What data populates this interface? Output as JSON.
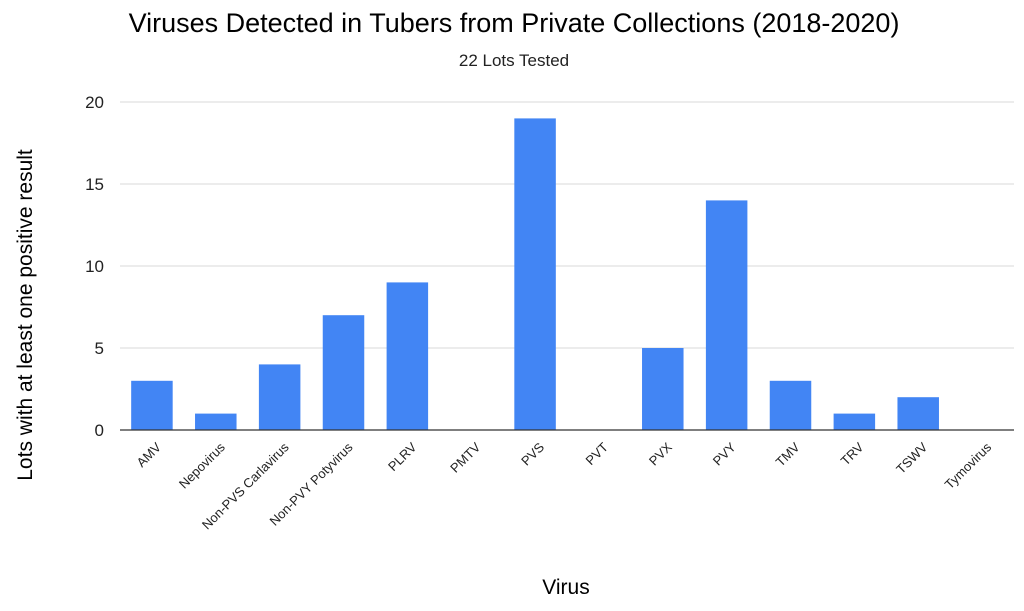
{
  "chart_data": {
    "type": "bar",
    "title": "Viruses Detected in Tubers from Private Collections (2018-2020)",
    "subtitle": "22 Lots Tested",
    "xlabel": "Virus",
    "ylabel": "Lots with at least one positive result",
    "categories": [
      "AMV",
      "Nepovirus",
      "Non-PVS Carlavirus",
      "Non-PVY Potyvirus",
      "PLRV",
      "PMTV",
      "PVS",
      "PVT",
      "PVX",
      "PVY",
      "TMV",
      "TRV",
      "TSWV",
      "Tymovirus"
    ],
    "values": [
      3,
      1,
      4,
      7,
      9,
      0,
      19,
      0,
      5,
      14,
      3,
      1,
      2,
      0
    ],
    "ylim": [
      0,
      20
    ],
    "yticks": [
      0,
      5,
      10,
      15,
      20
    ],
    "grid": true,
    "legend": "none",
    "colors": {
      "bar": "#4285f4",
      "grid": "#d9d9d9",
      "axis": "#333333",
      "text": "#000000",
      "tick_text": "#222222"
    }
  }
}
